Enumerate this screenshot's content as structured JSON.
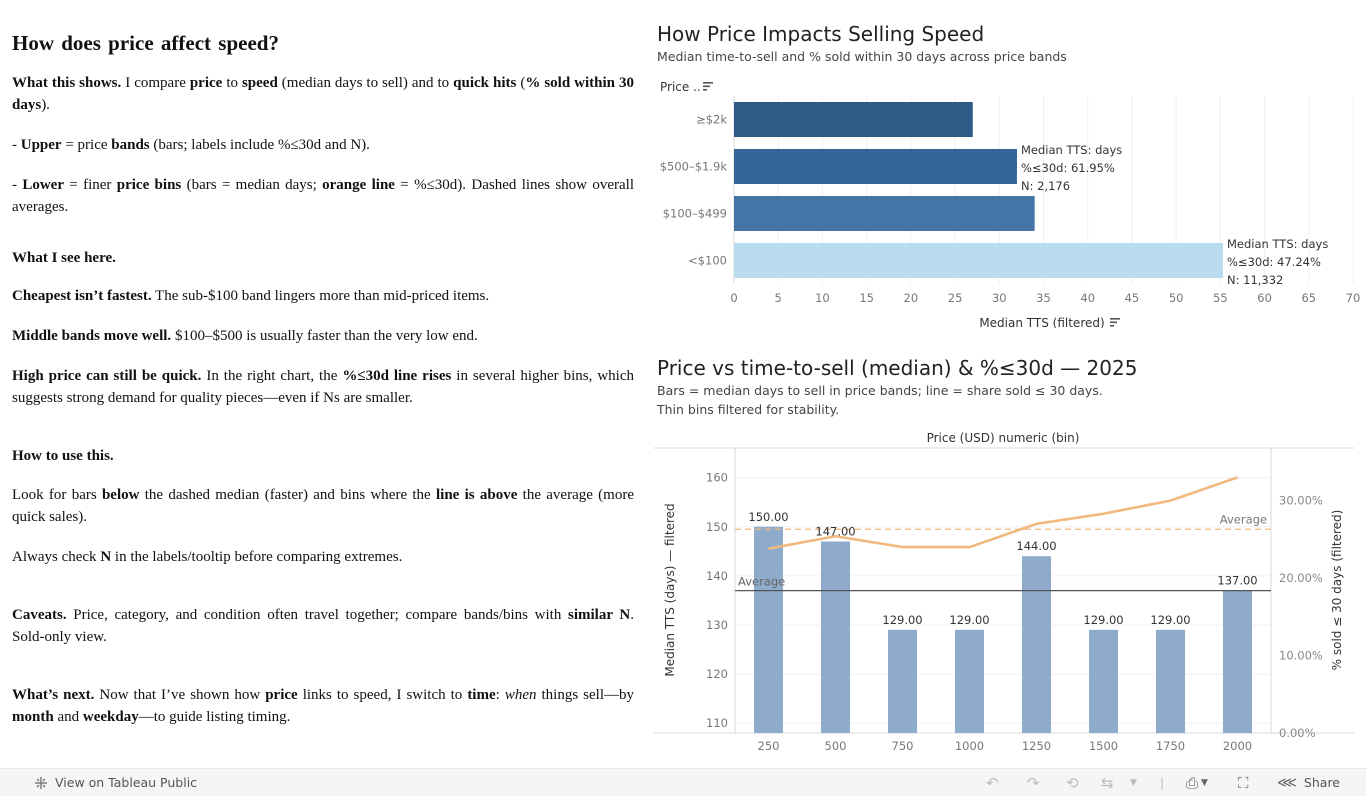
{
  "story": {
    "title": "How does price affect speed?",
    "p1": [
      {
        "t": "What this shows.",
        "b": true
      },
      {
        "t": " I compare "
      },
      {
        "t": "price",
        "b": true
      },
      {
        "t": " to "
      },
      {
        "t": "speed",
        "b": true
      },
      {
        "t": " (median days to sell) and to "
      },
      {
        "t": "quick hits",
        "b": true
      },
      {
        "t": " ("
      },
      {
        "t": "% sold within 30 days",
        "b": true
      },
      {
        "t": ")."
      }
    ],
    "p2": [
      {
        "t": " - "
      },
      {
        "t": "Upper",
        "b": true
      },
      {
        "t": " = price "
      },
      {
        "t": "bands",
        "b": true
      },
      {
        "t": " (bars; labels include %≤30d and N)."
      }
    ],
    "p3": [
      {
        "t": " - "
      },
      {
        "t": "Lower",
        "b": true
      },
      {
        "t": " = finer "
      },
      {
        "t": "price bins",
        "b": true
      },
      {
        "t": " (bars = median days; "
      },
      {
        "t": "orange line",
        "b": true
      },
      {
        "t": " = %≤30d). Dashed lines show overall averages."
      }
    ],
    "p4": [
      {
        "t": "What I see here.",
        "b": true
      }
    ],
    "p5": [
      {
        "t": "Cheapest isn’t fastest.",
        "b": true
      },
      {
        "t": " The sub-$100 band lingers more than mid-priced items."
      }
    ],
    "p6": [
      {
        "t": "Middle bands move well.",
        "b": true
      },
      {
        "t": " $100–$500 is usually faster than the very low end."
      }
    ],
    "p7": [
      {
        "t": "High price can still be quick.",
        "b": true
      },
      {
        "t": " In the right chart, the "
      },
      {
        "t": "%≤30d line rises",
        "b": true
      },
      {
        "t": " in several higher bins, which suggests strong demand for quality pieces—even if Ns are smaller."
      }
    ],
    "p8": [
      {
        "t": "How to use this.",
        "b": true
      }
    ],
    "p9": [
      {
        "t": "Look for bars "
      },
      {
        "t": "below",
        "b": true
      },
      {
        "t": " the dashed median (faster) and bins where the "
      },
      {
        "t": "line is above",
        "b": true
      },
      {
        "t": " the average (more quick sales)."
      }
    ],
    "p10": [
      {
        "t": "Always check "
      },
      {
        "t": "N",
        "b": true
      },
      {
        "t": " in the labels/tooltip before comparing extremes."
      }
    ],
    "p11": [
      {
        "t": "Caveats.",
        "b": true
      },
      {
        "t": " Price, category, and condition often travel together; compare bands/bins with "
      },
      {
        "t": "similar N",
        "b": true
      },
      {
        "t": ". Sold-only view."
      }
    ],
    "p12": [
      {
        "t": "What’s next.",
        "b": true
      },
      {
        "t": " Now that I’ve shown how "
      },
      {
        "t": "price",
        "b": true
      },
      {
        "t": " links to speed, I switch to "
      },
      {
        "t": "time",
        "b": true
      },
      {
        "t": ": "
      },
      {
        "t": "when",
        "i": true
      },
      {
        "t": " things sell—by "
      },
      {
        "t": "month",
        "b": true
      },
      {
        "t": " and "
      },
      {
        "t": "weekday",
        "b": true
      },
      {
        "t": "—to guide listing timing."
      }
    ]
  },
  "chart1": {
    "title": "How Price Impacts Selling Speed",
    "subtitle": "Median time-to-sell and % sold within 30 days across price bands",
    "row_header": "Price ..",
    "sort_icon": "sort-icon",
    "x_axis_title": "Median TTS (filtered)",
    "colors": [
      "#2e5a87",
      "#35669a",
      "#4575a6",
      "#b9dcef"
    ],
    "tooltips": [
      {
        "lines": [
          "Median TTS:  days",
          "%≤30d: 61.95%",
          "N: 2,176"
        ]
      },
      {
        "lines": [
          "Median TTS:  days",
          "%≤30d: 47.24%",
          "N: 11,332"
        ]
      }
    ]
  },
  "chart2": {
    "title": "Price vs time-to-sell (median) & %≤30d — 2025",
    "subtitle1": "Bars = median days to sell in price bands; line = share sold ≤ 30 days.",
    "subtitle2": "Thin bins filtered for stability.",
    "x_header": "Price (USD) numeric (bin)",
    "avg_label": "Average",
    "left_axis_title": "Median TTS (days) — filtered",
    "right_axis_title": "% sold ≤ 30 days (filtered)",
    "bar_color": "#8eabcc",
    "line_color": "#f2b97f"
  },
  "chart_data": [
    {
      "type": "bar",
      "orientation": "horizontal",
      "title": "How Price Impacts Selling Speed",
      "subtitle": "Median time-to-sell and % sold within 30 days across price bands",
      "categories": [
        "≥$2k",
        "$500–$1.9k",
        "$100–$499",
        "<$100"
      ],
      "values": [
        27,
        32,
        34,
        55.3
      ],
      "xlabel": "Median TTS (filtered)",
      "xlim": [
        0,
        70
      ],
      "xticks": [
        "0",
        "5",
        "10",
        "15",
        "20",
        "25",
        "30",
        "35",
        "40",
        "45",
        "50",
        "55",
        "60",
        "65",
        "70"
      ],
      "ylabel": "Price ..",
      "grid": true
    },
    {
      "type": "bar",
      "title": "Price vs time-to-sell (median) & %≤30d — 2025",
      "x": [
        250,
        500,
        750,
        1000,
        1250,
        1500,
        1750,
        2000
      ],
      "xticks": [
        "250",
        "500",
        "750",
        "1000",
        "1250",
        "1500",
        "1750",
        "2000"
      ],
      "xlabel": "Price (USD) numeric (bin)",
      "series": [
        {
          "values": [
            150,
            147,
            129,
            129,
            144,
            129,
            129,
            137
          ],
          "labels": [
            "150.00",
            "147.00",
            "129.00",
            "129.00",
            "144.00",
            "129.00",
            "129.00",
            "137.00"
          ]
        },
        {
          "values": [
            23.8,
            25.4,
            24.0,
            24.0,
            27.0,
            28.3,
            30.0,
            33.0
          ],
          "axis": "right",
          "style": "line"
        }
      ],
      "ylabel": "Median TTS (days) — filtered",
      "ylim": [
        108,
        164
      ],
      "yticks": [
        "110",
        "120",
        "130",
        "140",
        "150",
        "160"
      ],
      "ylabel_right": "% sold ≤ 30 days (filtered)",
      "ylim_right": [
        0,
        35.5
      ],
      "yticks_right": [
        "0.00%",
        "10.00%",
        "20.00%",
        "30.00%"
      ],
      "reference_lines": [
        {
          "axis": "left",
          "value": 137,
          "label": "Average",
          "style": "solid"
        },
        {
          "axis": "right",
          "value": 26.3,
          "label": "Average",
          "style": "dashed"
        }
      ],
      "grid": true
    }
  ],
  "toolbar": {
    "view_label": "View on Tableau Public",
    "share_label": "Share",
    "icons": [
      "tableau-logo-icon",
      "undo-icon",
      "redo-icon",
      "revert-icon",
      "refresh-icon",
      "download-icon",
      "fullscreen-icon",
      "share-icon"
    ]
  }
}
